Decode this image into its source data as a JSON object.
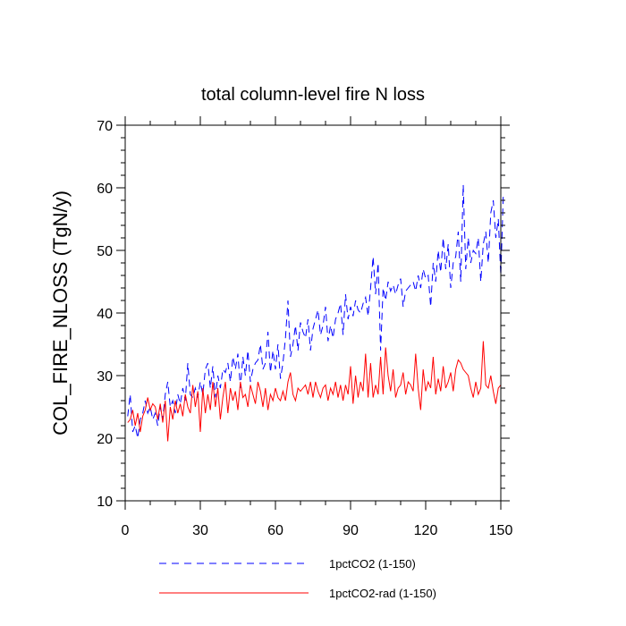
{
  "chart_data": {
    "type": "line",
    "title": "total column-level fire N loss",
    "xlabel": "",
    "ylabel": "COL_FIRE_NLOSS  (TgN/y)",
    "xlim": [
      0,
      150
    ],
    "ylim": [
      10,
      70
    ],
    "xticks": [
      "0",
      "30",
      "60",
      "90",
      "120",
      "150"
    ],
    "yticks": [
      "10",
      "20",
      "30",
      "40",
      "50",
      "60",
      "70"
    ],
    "grid": false,
    "legend_position": "bottom",
    "series": [
      {
        "name": "1pctCO2 (1-150)",
        "color": "#0000ff",
        "dash": "dashed",
        "values": [
          23.5,
          27.0,
          21.0,
          22.0,
          20.0,
          23.0,
          24.0,
          26.0,
          24.0,
          25.0,
          23.0,
          24.0,
          22.0,
          25.0,
          23.0,
          27.0,
          29.0,
          25.0,
          26.0,
          24.0,
          27.0,
          25.5,
          28.0,
          26.0,
          32.0,
          27.0,
          26.5,
          28.0,
          26.5,
          29.0,
          27.0,
          31.0,
          32.0,
          28.0,
          31.5,
          26.5,
          30.0,
          28.0,
          31.0,
          30.5,
          32.0,
          29.0,
          33.0,
          31.0,
          33.5,
          28.0,
          33.0,
          30.0,
          34.0,
          29.0,
          31.0,
          32.0,
          32.5,
          35.0,
          31.0,
          32.0,
          37.0,
          30.5,
          34.0,
          31.0,
          35.0,
          29.5,
          32.0,
          36.0,
          42.0,
          33.0,
          35.0,
          38.0,
          34.0,
          38.5,
          37.0,
          36.0,
          39.0,
          34.0,
          37.5,
          39.0,
          40.5,
          36.5,
          38.0,
          41.0,
          35.5,
          38.0,
          36.0,
          39.0,
          40.0,
          41.5,
          36.5,
          43.0,
          39.0,
          41.0,
          39.5,
          42.0,
          40.5,
          40.0,
          41.5,
          42.5,
          39.5,
          44.0,
          49.0,
          43.0,
          48.0,
          34.0,
          44.0,
          42.0,
          45.0,
          43.5,
          44.5,
          43.0,
          44.5,
          45.5,
          41.0,
          43.5,
          44.0,
          44.5,
          45.0,
          43.5,
          46.0,
          44.0,
          47.0,
          45.5,
          46.0,
          41.0,
          48.0,
          45.0,
          50.0,
          46.5,
          52.0,
          47.0,
          51.0,
          44.0,
          48.0,
          49.0,
          53.0,
          45.0,
          60.5,
          47.0,
          52.0,
          48.0,
          50.0,
          49.5,
          52.0,
          45.0,
          51.0,
          53.0,
          48.0,
          56.0,
          58.0,
          52.0,
          55.0,
          46.0,
          59.0
        ]
      },
      {
        "name": "1pctCO2-rad (1-150)",
        "color": "#ff0000",
        "dash": "solid",
        "values": [
          22.5,
          23.0,
          24.5,
          22.0,
          24.0,
          21.0,
          23.5,
          24.5,
          26.5,
          24.5,
          25.5,
          25.0,
          23.0,
          25.5,
          22.5,
          26.0,
          19.5,
          25.0,
          23.0,
          26.0,
          24.0,
          25.5,
          23.5,
          27.0,
          25.0,
          24.0,
          28.5,
          25.0,
          27.5,
          21.0,
          28.0,
          24.0,
          27.0,
          24.5,
          29.0,
          25.0,
          28.0,
          23.0,
          26.5,
          29.0,
          24.0,
          28.0,
          26.0,
          27.5,
          24.5,
          29.0,
          26.5,
          27.0,
          25.0,
          28.5,
          27.0,
          25.5,
          29.0,
          27.5,
          25.0,
          28.0,
          24.5,
          27.0,
          26.0,
          28.0,
          26.5,
          26.0,
          27.5,
          26.0,
          29.0,
          30.5,
          27.0,
          26.0,
          28.0,
          27.5,
          28.0,
          28.5,
          27.0,
          29.0,
          26.5,
          29.0,
          27.5,
          26.5,
          28.0,
          28.5,
          26.0,
          28.0,
          27.0,
          29.0,
          26.5,
          28.5,
          26.0,
          28.5,
          27.0,
          31.5,
          25.5,
          30.0,
          26.5,
          29.0,
          27.5,
          33.5,
          26.5,
          32.0,
          26.5,
          28.5,
          27.0,
          33.0,
          27.0,
          34.5,
          30.0,
          27.5,
          31.0,
          26.5,
          28.0,
          28.5,
          30.5,
          27.0,
          29.0,
          28.5,
          27.5,
          33.5,
          28.0,
          24.5,
          31.0,
          27.5,
          29.0,
          28.0,
          33.0,
          27.0,
          29.5,
          27.5,
          31.5,
          28.0,
          29.0,
          30.5,
          27.5,
          31.0,
          32.5,
          32.0,
          31.0,
          30.5,
          30.0,
          28.0,
          26.5,
          29.0,
          27.0,
          28.0,
          35.5,
          28.5,
          28.0,
          30.0,
          27.5,
          25.5,
          28.0,
          28.5
        ]
      }
    ]
  }
}
